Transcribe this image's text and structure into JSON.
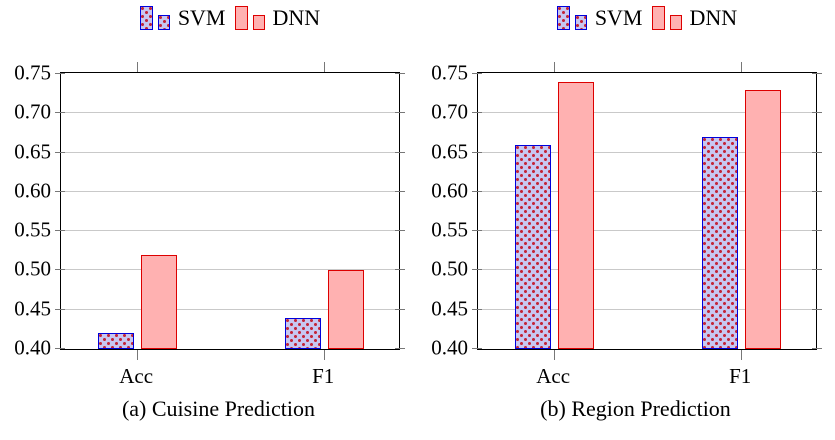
{
  "colors": {
    "svm_fill": "#c7c7f1",
    "svm_border": "#0000dd",
    "svm_dot": "#c32538",
    "dnn_fill": "#ffb1b1",
    "dnn_border": "#dd0000",
    "gridline": "#c9c9c9",
    "tick": "#777777",
    "frame": "#000000"
  },
  "chart_data": [
    {
      "type": "bar",
      "caption": "(a) Cuisine Prediction",
      "categories": [
        "Acc",
        "F1"
      ],
      "series": [
        {
          "name": "SVM",
          "values": [
            0.42,
            0.44
          ]
        },
        {
          "name": "DNN",
          "values": [
            0.52,
            0.5
          ]
        }
      ],
      "ylim": [
        0.4,
        0.75
      ],
      "ytick_step": 0.05,
      "ytick_labels": [
        "0.40",
        "0.45",
        "0.50",
        "0.55",
        "0.60",
        "0.65",
        "0.70",
        "0.75"
      ],
      "grid": true,
      "legend_position": "above",
      "xlabel": "",
      "ylabel": ""
    },
    {
      "type": "bar",
      "caption": "(b) Region Prediction",
      "categories": [
        "Acc",
        "F1"
      ],
      "series": [
        {
          "name": "SVM",
          "values": [
            0.66,
            0.67
          ]
        },
        {
          "name": "DNN",
          "values": [
            0.74,
            0.73
          ]
        }
      ],
      "ylim": [
        0.4,
        0.75
      ],
      "ytick_step": 0.05,
      "ytick_labels": [
        "0.40",
        "0.45",
        "0.50",
        "0.55",
        "0.60",
        "0.65",
        "0.70",
        "0.75"
      ],
      "grid": true,
      "legend_position": "above",
      "xlabel": "",
      "ylabel": ""
    }
  ]
}
